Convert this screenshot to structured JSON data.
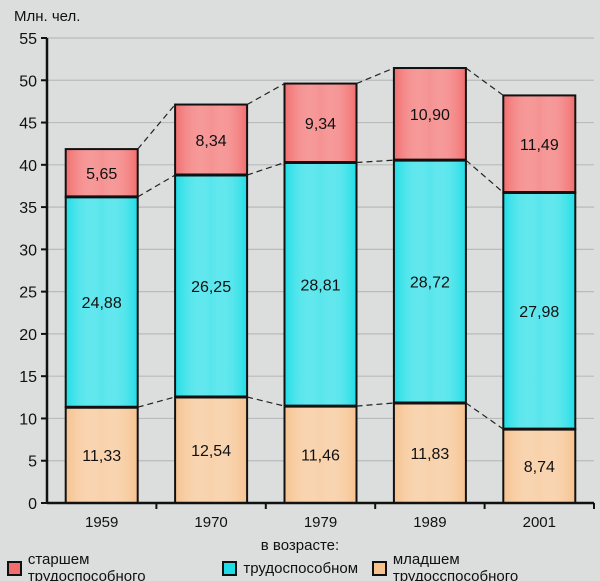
{
  "chart_data": {
    "type": "bar",
    "stacked": true,
    "ylabel": "Млн. чел.",
    "ylim": [
      0,
      55
    ],
    "yticks": [
      0,
      5,
      10,
      15,
      20,
      25,
      30,
      35,
      40,
      45,
      50,
      55
    ],
    "grid": true,
    "categories": [
      "1959",
      "1970",
      "1979",
      "1989",
      "2001"
    ],
    "legend_title": "в возрасте:",
    "legend_position": "bottom",
    "series": [
      {
        "name": "младшем трудосспособного",
        "color": "#f6c28e",
        "values": [
          11.33,
          12.54,
          11.46,
          11.83,
          8.74
        ],
        "labels": [
          "11,33",
          "12,54",
          "11,46",
          "11,83",
          "8,74"
        ]
      },
      {
        "name": "трудоспособном",
        "color": "#1fdde6",
        "values": [
          24.88,
          26.25,
          28.81,
          28.72,
          27.98
        ],
        "labels": [
          "24,88",
          "26,25",
          "28,81",
          "28,72",
          "27,98"
        ]
      },
      {
        "name": "старшем трудоспособного",
        "color": "#f26d6d",
        "values": [
          5.65,
          8.34,
          9.34,
          10.9,
          11.49
        ],
        "labels": [
          "5,65",
          "8,34",
          "9,34",
          "10,90",
          "11,49"
        ]
      }
    ],
    "legend_order": [
      2,
      1,
      0
    ]
  }
}
